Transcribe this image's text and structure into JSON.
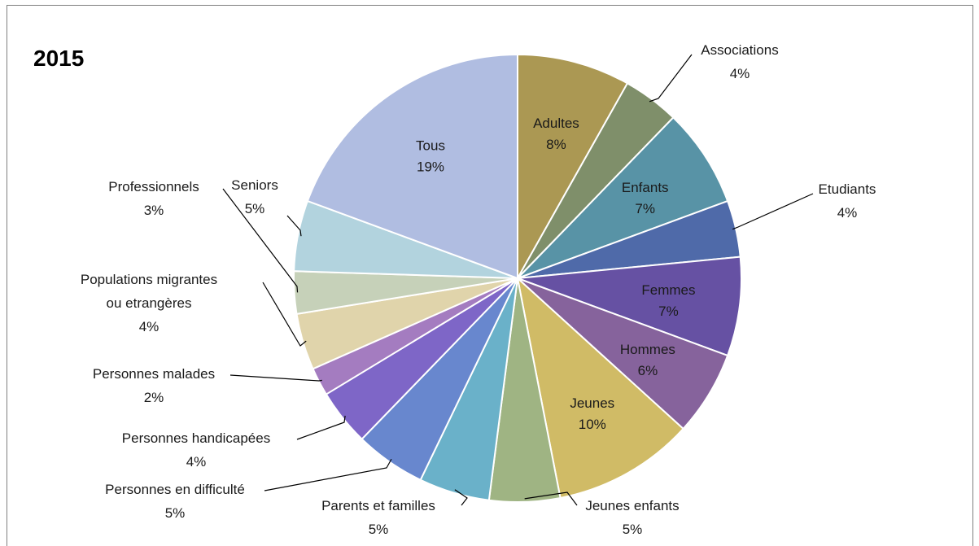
{
  "chart_data": {
    "type": "pie",
    "title": "2015",
    "start": "12 o'clock",
    "direction": "clockwise",
    "slices": [
      {
        "label": "Adultes",
        "value": 8,
        "display": "8%",
        "color": "#ab9853",
        "label_position": "inside"
      },
      {
        "label": "Associations",
        "value": 4,
        "display": "4%",
        "color": "#7f8f6a",
        "label_position": "outside"
      },
      {
        "label": "Enfants",
        "value": 7,
        "display": "7%",
        "color": "#5893a6",
        "label_position": "inside"
      },
      {
        "label": "Etudiants",
        "value": 4,
        "display": "4%",
        "color": "#4f6aa9",
        "label_position": "outside"
      },
      {
        "label": "Femmes",
        "value": 7,
        "display": "7%",
        "color": "#6651a3",
        "label_position": "inside"
      },
      {
        "label": "Hommes",
        "value": 6,
        "display": "6%",
        "color": "#86639c",
        "label_position": "inside"
      },
      {
        "label": "Jeunes",
        "value": 10,
        "display": "10%",
        "color": "#d0bb66",
        "label_position": "inside"
      },
      {
        "label": "Jeunes enfants",
        "value": 5,
        "display": "5%",
        "color": "#9fb483",
        "label_position": "outside"
      },
      {
        "label": "Parents et familles",
        "value": 5,
        "display": "5%",
        "color": "#6ab1c9",
        "label_position": "outside"
      },
      {
        "label": "Personnes en difficulté",
        "value": 5,
        "display": "5%",
        "color": "#6887ce",
        "label_position": "outside"
      },
      {
        "label": "Personnes handicapées",
        "value": 4,
        "display": "4%",
        "color": "#7e66c7",
        "label_position": "outside"
      },
      {
        "label": "Personnes malades",
        "value": 2,
        "display": "2%",
        "color": "#a47cc0",
        "label_position": "outside"
      },
      {
        "label": "Populations migrantes ou etrangères",
        "value": 4,
        "display": "4%",
        "color": "#e0d4ab",
        "label_position": "outside"
      },
      {
        "label": "Professionnels",
        "value": 3,
        "display": "3%",
        "color": "#c6d1b9",
        "label_position": "outside"
      },
      {
        "label": "Seniors",
        "value": 5,
        "display": "5%",
        "color": "#b2d3de",
        "label_position": "outside"
      },
      {
        "label": "Tous",
        "value": 19,
        "display": "19%",
        "color": "#b0bde1",
        "label_position": "inside"
      }
    ]
  }
}
